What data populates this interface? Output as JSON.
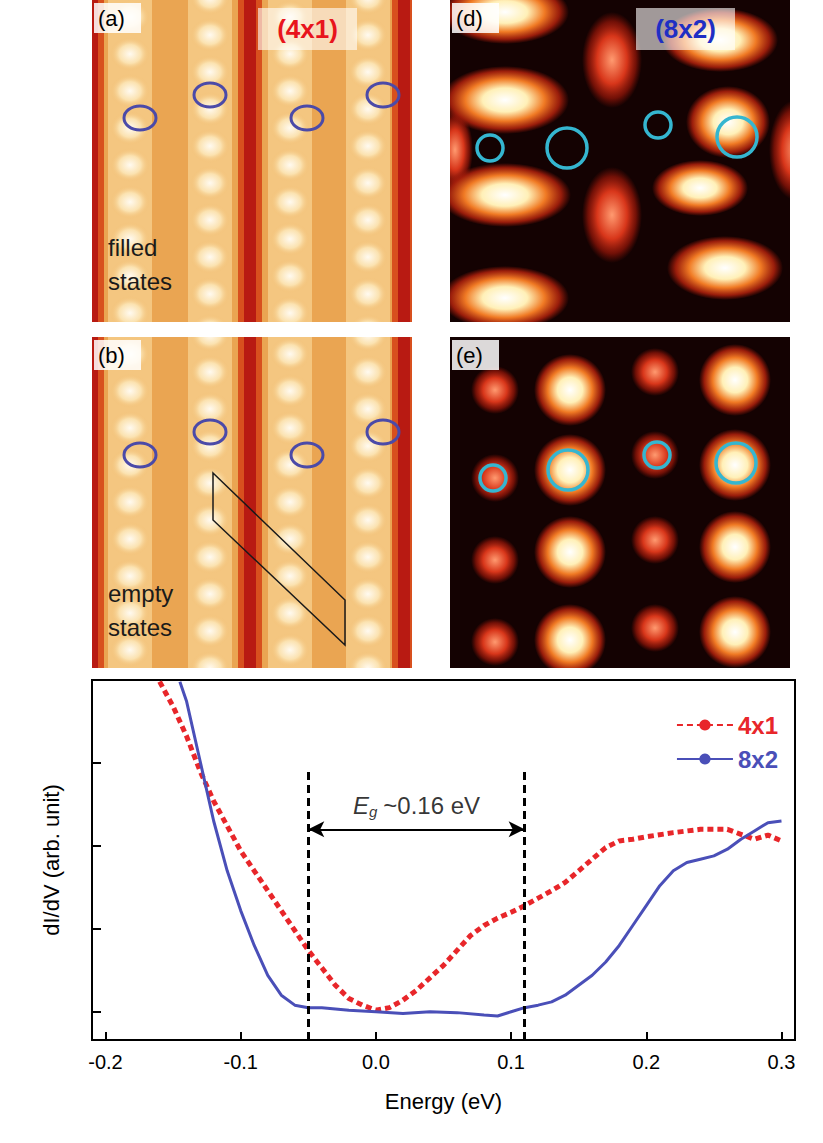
{
  "images": [
    {
      "letter": "(a)",
      "label": "(4x1)",
      "color": "#e8141c",
      "caption": "filled states"
    },
    {
      "letter": "(d)",
      "label": "(8x2)",
      "color": "#1f2fc4"
    },
    {
      "letter": "(b)",
      "caption": "empty states"
    },
    {
      "letter": "(e)"
    }
  ],
  "chart_data": {
    "type": "line",
    "x_label": "Energy (eV)",
    "y_label": "dI/dV (arb. unit)",
    "xlim": [
      -0.21,
      0.31
    ],
    "xticks": [
      -0.2,
      -0.1,
      {
        "value": 0,
        "label": "0.0"
      },
      0.1,
      0.2,
      0.3
    ],
    "ylim": [
      0.66,
      5
    ],
    "yticks": [
      1,
      2,
      3,
      4,
      5
    ],
    "tick_labels": "x",
    "grid": false,
    "legend": "upper right",
    "series": [
      {
        "name": "4x1",
        "color": "#e8262a",
        "line_style": "dotted",
        "x": [
          -0.16,
          -0.15,
          -0.14,
          -0.13,
          -0.12,
          -0.11,
          -0.1,
          -0.09,
          -0.08,
          -0.07,
          -0.06,
          -0.05,
          -0.04,
          -0.03,
          -0.02,
          -0.01,
          0.0,
          0.01,
          0.02,
          0.03,
          0.04,
          0.05,
          0.06,
          0.07,
          0.08,
          0.09,
          0.1,
          0.11,
          0.12,
          0.13,
          0.14,
          0.15,
          0.16,
          0.17,
          0.18,
          0.19,
          0.2,
          0.22,
          0.24,
          0.26,
          0.27,
          0.28,
          0.29,
          0.3
        ],
        "values": [
          4.98,
          4.68,
          4.32,
          3.9,
          3.54,
          3.24,
          2.94,
          2.7,
          2.46,
          2.22,
          1.98,
          1.74,
          1.53,
          1.32,
          1.16,
          1.08,
          1.02,
          1.05,
          1.14,
          1.26,
          1.41,
          1.56,
          1.74,
          1.92,
          2.04,
          2.13,
          2.2,
          2.28,
          2.37,
          2.46,
          2.56,
          2.7,
          2.84,
          2.98,
          3.06,
          3.08,
          3.11,
          3.16,
          3.2,
          3.2,
          3.14,
          3.08,
          3.13,
          3.06
        ]
      },
      {
        "name": "8x2",
        "color": "#4a4fb8",
        "line_style": "solid",
        "x": [
          -0.145,
          -0.14,
          -0.13,
          -0.12,
          -0.11,
          -0.1,
          -0.09,
          -0.08,
          -0.07,
          -0.06,
          -0.05,
          -0.04,
          -0.02,
          0.0,
          0.02,
          0.04,
          0.06,
          0.08,
          0.09,
          0.1,
          0.11,
          0.12,
          0.13,
          0.14,
          0.15,
          0.16,
          0.17,
          0.18,
          0.19,
          0.2,
          0.21,
          0.22,
          0.23,
          0.24,
          0.25,
          0.26,
          0.27,
          0.28,
          0.29,
          0.3
        ],
        "values": [
          4.98,
          4.74,
          4.02,
          3.3,
          2.7,
          2.22,
          1.8,
          1.44,
          1.2,
          1.08,
          1.05,
          1.05,
          1.02,
          1.0,
          0.98,
          1.0,
          0.99,
          0.96,
          0.95,
          1.0,
          1.05,
          1.08,
          1.12,
          1.2,
          1.32,
          1.44,
          1.6,
          1.8,
          2.04,
          2.28,
          2.52,
          2.7,
          2.8,
          2.84,
          2.88,
          2.96,
          3.08,
          3.18,
          3.28,
          3.3
        ]
      }
    ],
    "annotation": {
      "label": "E",
      "subscript": "g",
      "text": "~0.16 eV",
      "x": [
        -0.05,
        0.11
      ],
      "y": 3.2,
      "y_top": 3.9
    }
  }
}
